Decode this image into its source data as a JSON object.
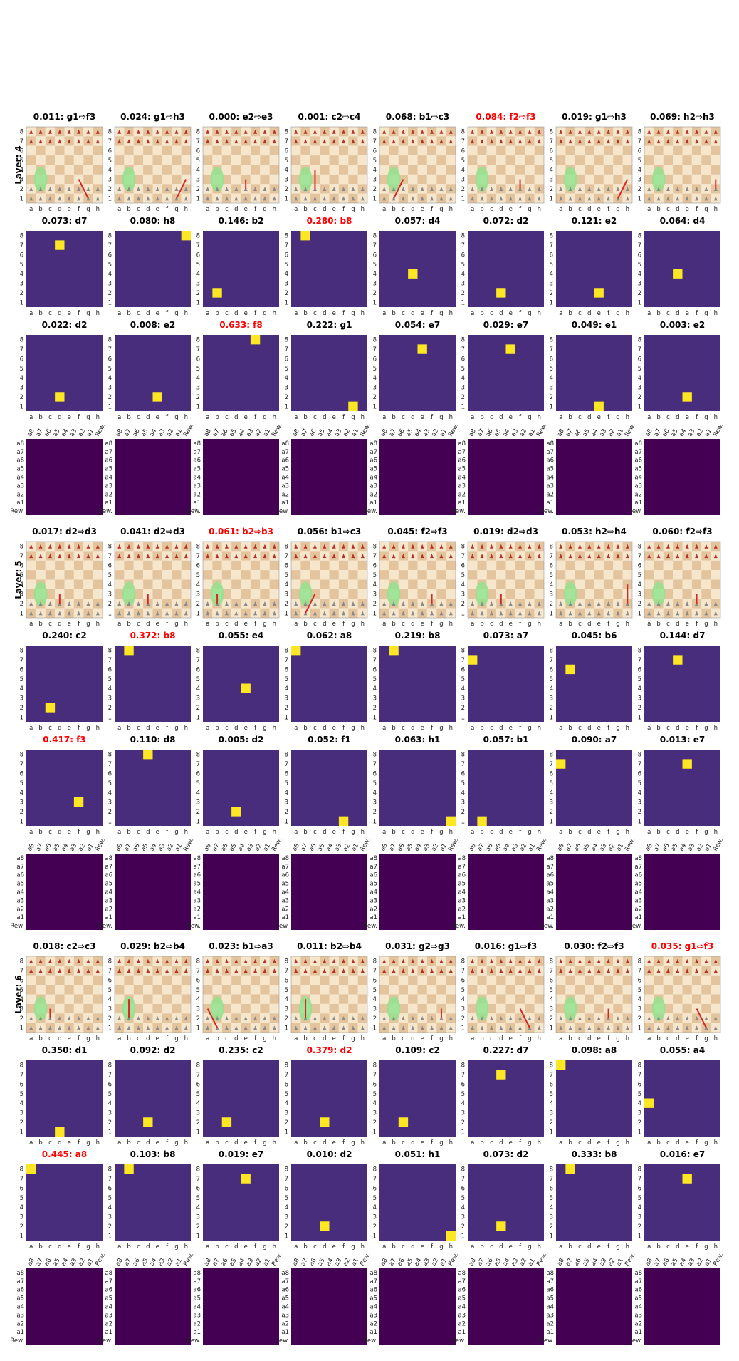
{
  "files": [
    "a",
    "b",
    "c",
    "d",
    "e",
    "f",
    "g",
    "h"
  ],
  "ranks": [
    8,
    7,
    6,
    5,
    4,
    3,
    2,
    1
  ],
  "attention_labels": [
    "a8",
    "a7",
    "a6",
    "a5",
    "a4",
    "a3",
    "a2",
    "a1",
    "Rew."
  ],
  "layers": [
    {
      "label": "Layer: 4",
      "rows": [
        {
          "kind": "board",
          "panels": [
            {
              "title": "0.011: g1⇨f3"
            },
            {
              "title": "0.024: g1⇨h3"
            },
            {
              "title": "0.000: e2⇨e3"
            },
            {
              "title": "0.001: c2⇨c4"
            },
            {
              "title": "0.068: b1⇨c3"
            },
            {
              "title": "0.084: f2⇨f3",
              "color": "red"
            },
            {
              "title": "0.019: g1⇨h3"
            },
            {
              "title": "0.069: h2⇨h3"
            }
          ]
        },
        {
          "kind": "heatmap",
          "panels": [
            {
              "title": "0.073: d7"
            },
            {
              "title": "0.080: h8"
            },
            {
              "title": "0.146: b2"
            },
            {
              "title": "0.280: b8",
              "color": "red"
            },
            {
              "title": "0.057: d4"
            },
            {
              "title": "0.072: d2"
            },
            {
              "title": "0.121: e2"
            },
            {
              "title": "0.064: d4"
            }
          ]
        },
        {
          "kind": "heatmap",
          "panels": [
            {
              "title": "0.022: d2"
            },
            {
              "title": "0.008: e2"
            },
            {
              "title": "0.633: f8",
              "color": "red"
            },
            {
              "title": "0.222: g1"
            },
            {
              "title": "0.054: e7"
            },
            {
              "title": "0.029: e7"
            },
            {
              "title": "0.049: e1"
            },
            {
              "title": "0.003: e2"
            }
          ]
        },
        {
          "kind": "attention"
        }
      ]
    },
    {
      "label": "Layer: 5",
      "rows": [
        {
          "kind": "board",
          "panels": [
            {
              "title": "0.017: d2⇨d3"
            },
            {
              "title": "0.041: d2⇨d3"
            },
            {
              "title": "0.061: b2⇨b3",
              "color": "red"
            },
            {
              "title": "0.056: b1⇨c3"
            },
            {
              "title": "0.045: f2⇨f3"
            },
            {
              "title": "0.019: d2⇨d3"
            },
            {
              "title": "0.053: h2⇨h4"
            },
            {
              "title": "0.060: f2⇨f3"
            }
          ]
        },
        {
          "kind": "heatmap",
          "panels": [
            {
              "title": "0.240: c2"
            },
            {
              "title": "0.372: b8",
              "color": "red"
            },
            {
              "title": "0.055: e4"
            },
            {
              "title": "0.062: a8"
            },
            {
              "title": "0.219: b8"
            },
            {
              "title": "0.073: a7"
            },
            {
              "title": "0.045: b6"
            },
            {
              "title": "0.144: d7"
            }
          ]
        },
        {
          "kind": "heatmap",
          "panels": [
            {
              "title": "0.417: f3",
              "color": "red"
            },
            {
              "title": "0.110: d8"
            },
            {
              "title": "0.005: d2"
            },
            {
              "title": "0.052: f1"
            },
            {
              "title": "0.063: h1"
            },
            {
              "title": "0.057: b1"
            },
            {
              "title": "0.090: a7"
            },
            {
              "title": "0.013: e7"
            }
          ]
        },
        {
          "kind": "attention"
        }
      ]
    },
    {
      "label": "Layer: 6",
      "rows": [
        {
          "kind": "board",
          "panels": [
            {
              "title": "0.018: c2⇨c3"
            },
            {
              "title": "0.029: b2⇨b4"
            },
            {
              "title": "0.023: b1⇨a3"
            },
            {
              "title": "0.011: b2⇨b4"
            },
            {
              "title": "0.031: g2⇨g3"
            },
            {
              "title": "0.016: g1⇨f3"
            },
            {
              "title": "0.030: f2⇨f3"
            },
            {
              "title": "0.035: g1⇨f3",
              "color": "red"
            }
          ]
        },
        {
          "kind": "heatmap",
          "panels": [
            {
              "title": "0.350: d1"
            },
            {
              "title": "0.092: d2"
            },
            {
              "title": "0.235: c2"
            },
            {
              "title": "0.379: d2",
              "color": "red"
            },
            {
              "title": "0.109: c2"
            },
            {
              "title": "0.227: d7"
            },
            {
              "title": "0.098: a8"
            },
            {
              "title": "0.055: a4"
            }
          ]
        },
        {
          "kind": "heatmap",
          "panels": [
            {
              "title": "0.445: a8",
              "color": "red"
            },
            {
              "title": "0.103: b8"
            },
            {
              "title": "0.019: e7"
            },
            {
              "title": "0.010: d2"
            },
            {
              "title": "0.051: h1"
            },
            {
              "title": "0.073: d2"
            },
            {
              "title": "0.333: b8"
            },
            {
              "title": "0.016: e7"
            }
          ]
        },
        {
          "kind": "attention"
        }
      ]
    }
  ]
}
